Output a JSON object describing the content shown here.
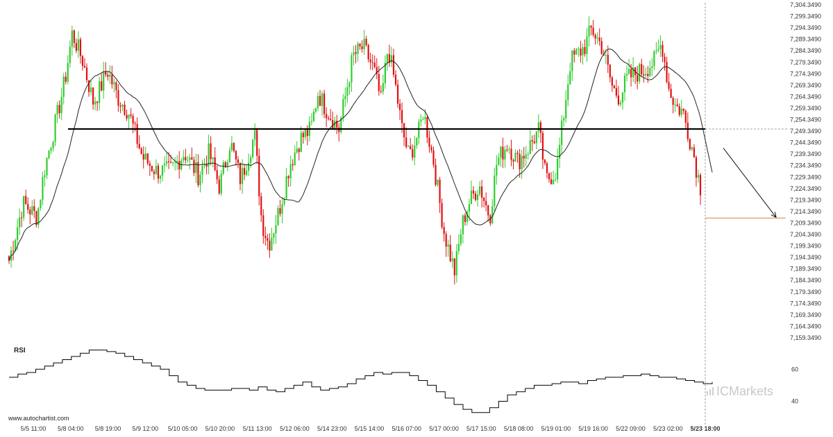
{
  "chart_data": {
    "type": "candlestick",
    "y_ticks": [
      "7,304.3490",
      "7,299.3490",
      "7,294.3490",
      "7,289.3490",
      "7,284.3490",
      "7,279.3490",
      "7,274.3490",
      "7,269.3490",
      "7,264.3490",
      "7,259.3490",
      "7,254.3490",
      "7,249.3490",
      "7,244.3490",
      "7,239.3490",
      "7,234.3490",
      "7,229.3490",
      "7,224.3490",
      "7,219.3490",
      "7,214.3490",
      "7,209.3490",
      "7,204.3490",
      "7,199.3490",
      "7,194.3490",
      "7,189.3490",
      "7,184.3490",
      "7,179.3490",
      "7,174.3490",
      "7,169.3490",
      "7,164.3490",
      "7,159.3490"
    ],
    "ylim": [
      7159.349,
      7304.349
    ],
    "x_ticks": [
      "5/5 11:00",
      "5/8 04:00",
      "5/8 19:00",
      "5/9 12:00",
      "5/10 05:00",
      "5/10 20:00",
      "5/11 13:00",
      "5/12 06:00",
      "5/14 23:00",
      "5/15 14:00",
      "5/16 07:00",
      "5/17 00:00",
      "5/17 15:00",
      "5/18 08:00",
      "5/19 01:00",
      "5/19 16:00",
      "5/22 09:00",
      "5/23 02:00",
      "5/23 18:00"
    ],
    "current_x_label": "5/23 18:00",
    "support_level": 7250.3,
    "target_level": 7211.5,
    "forecast_arrow": {
      "from": 7242.0,
      "to": 7211.5
    },
    "colors": {
      "up": "#2ecc2e",
      "down": "#e01010",
      "ma": "#222222",
      "support": "#000000",
      "target": "#d9a35a",
      "rsi": "#000000"
    },
    "price_anchors": [
      [
        0,
        7193
      ],
      [
        4,
        7218
      ],
      [
        8,
        7212
      ],
      [
        10,
        7232
      ],
      [
        14,
        7258
      ],
      [
        16,
        7272
      ],
      [
        18,
        7292
      ],
      [
        21,
        7280
      ],
      [
        24,
        7262
      ],
      [
        26,
        7268
      ],
      [
        28,
        7276
      ],
      [
        31,
        7264
      ],
      [
        34,
        7258
      ],
      [
        38,
        7238
      ],
      [
        42,
        7232
      ],
      [
        46,
        7232
      ],
      [
        50,
        7240
      ],
      [
        54,
        7230
      ],
      [
        57,
        7240
      ],
      [
        60,
        7225
      ],
      [
        63,
        7245
      ],
      [
        66,
        7228
      ],
      [
        70,
        7248
      ],
      [
        72,
        7210
      ],
      [
        74,
        7200
      ],
      [
        77,
        7215
      ],
      [
        80,
        7235
      ],
      [
        83,
        7246
      ],
      [
        86,
        7250
      ],
      [
        88,
        7266
      ],
      [
        90,
        7260
      ],
      [
        94,
        7250
      ],
      [
        96,
        7266
      ],
      [
        98,
        7282
      ],
      [
        101,
        7286
      ],
      [
        104,
        7276
      ],
      [
        106,
        7262
      ],
      [
        108,
        7286
      ],
      [
        110,
        7270
      ],
      [
        112,
        7250
      ],
      [
        114,
        7238
      ],
      [
        117,
        7250
      ],
      [
        118,
        7258
      ],
      [
        121,
        7236
      ],
      [
        124,
        7205
      ],
      [
        127,
        7188
      ],
      [
        129,
        7208
      ],
      [
        131,
        7218
      ],
      [
        134,
        7226
      ],
      [
        137,
        7212
      ],
      [
        139,
        7236
      ],
      [
        142,
        7244
      ],
      [
        145,
        7236
      ],
      [
        148,
        7242
      ],
      [
        151,
        7250
      ],
      [
        153,
        7228
      ],
      [
        156,
        7232
      ],
      [
        158,
        7256
      ],
      [
        160,
        7280
      ],
      [
        164,
        7286
      ],
      [
        166,
        7294
      ],
      [
        169,
        7286
      ],
      [
        172,
        7268
      ],
      [
        174,
        7264
      ],
      [
        176,
        7272
      ],
      [
        178,
        7274
      ],
      [
        181,
        7276
      ],
      [
        184,
        7280
      ],
      [
        186,
        7288
      ],
      [
        188,
        7268
      ],
      [
        190,
        7260
      ],
      [
        192,
        7258
      ],
      [
        193,
        7252
      ],
      [
        195,
        7240
      ],
      [
        196,
        7232
      ],
      [
        197,
        7225
      ]
    ],
    "rsi": {
      "label": "RSI",
      "ticks": [
        "60",
        "40"
      ],
      "ylim": [
        32,
        74
      ],
      "values": [
        55,
        57,
        58,
        60,
        62,
        64,
        66,
        68,
        70,
        72,
        72,
        71,
        70,
        68,
        66,
        64,
        62,
        60,
        56,
        52,
        50,
        48,
        47,
        47,
        47,
        48,
        48,
        47,
        49,
        47,
        46,
        48,
        50,
        52,
        49,
        47,
        48,
        49,
        51,
        54,
        56,
        58,
        57,
        58,
        58,
        56,
        53,
        50,
        46,
        42,
        38,
        35,
        33,
        33,
        36,
        40,
        44,
        46,
        48,
        50,
        50,
        51,
        52,
        52,
        51,
        53,
        54,
        55,
        55,
        56,
        56,
        57,
        56,
        55,
        55,
        54,
        53,
        52,
        51,
        52
      ]
    },
    "watermark": "www.autochartist.com",
    "brand": "ICMarkets"
  }
}
